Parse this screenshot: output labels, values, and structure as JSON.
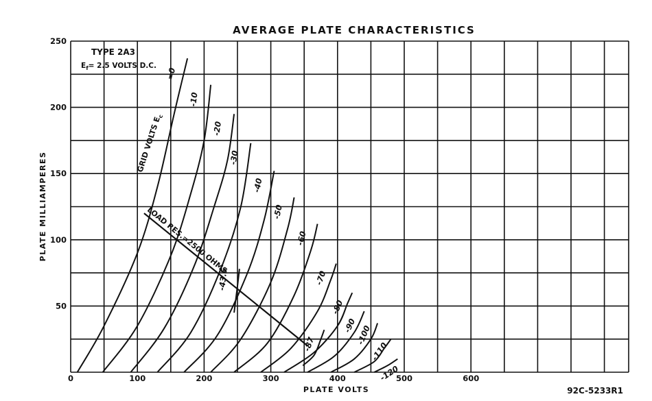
{
  "chart_data": {
    "type": "line",
    "title": "AVERAGE PLATE CHARACTERISTICS",
    "xlabel": "PLATE VOLTS",
    "ylabel": "PLATE MILLIAMPERES",
    "xlim": [
      0,
      600
    ],
    "ylim": [
      0,
      250
    ],
    "x_ticks": [
      "0",
      "100",
      "200",
      "300",
      "400",
      "500",
      "600"
    ],
    "y_ticks": [
      "0",
      "50",
      "100",
      "150",
      "200",
      "250"
    ],
    "x_tick_values": [
      0,
      100,
      200,
      300,
      400,
      500,
      600
    ],
    "y_tick_values": [
      0,
      50,
      100,
      150,
      200,
      250
    ],
    "grid": true,
    "x_grid_step": 50,
    "y_grid_step": 25,
    "annotations": {
      "tube_type": "TYPE 2A3",
      "filament": "E",
      "filament_sub": "f",
      "filament_value": "= 2.5 VOLTS D.C.",
      "grid_volts": "GRID VOLTS E",
      "grid_volts_sub": "c",
      "figure_number": "92C-5233R1",
      "load_line_label": "LOAD RES.=2500 OHMS"
    },
    "series": [
      {
        "name": "=0",
        "values": [
          [
            10,
            0
          ],
          [
            50,
            35
          ],
          [
            100,
            90
          ],
          [
            130,
            140
          ],
          [
            155,
            195
          ],
          [
            175,
            237
          ]
        ]
      },
      {
        "name": "-10",
        "values": [
          [
            48,
            0
          ],
          [
            100,
            35
          ],
          [
            150,
            88
          ],
          [
            180,
            135
          ],
          [
            200,
            175
          ],
          [
            210,
            217
          ]
        ]
      },
      {
        "name": "-20",
        "values": [
          [
            90,
            0
          ],
          [
            140,
            33
          ],
          [
            185,
            80
          ],
          [
            215,
            125
          ],
          [
            235,
            160
          ],
          [
            245,
            195
          ]
        ]
      },
      {
        "name": "-30",
        "values": [
          [
            130,
            0
          ],
          [
            180,
            30
          ],
          [
            225,
            78
          ],
          [
            255,
            125
          ],
          [
            270,
            173
          ]
        ]
      },
      {
        "name": "-40",
        "values": [
          [
            170,
            0
          ],
          [
            220,
            28
          ],
          [
            265,
            75
          ],
          [
            290,
            115
          ],
          [
            305,
            152
          ]
        ]
      },
      {
        "name": "-50",
        "values": [
          [
            210,
            0
          ],
          [
            255,
            25
          ],
          [
            300,
            68
          ],
          [
            325,
            108
          ],
          [
            335,
            132
          ]
        ]
      },
      {
        "name": "-43.5",
        "values": [
          [
            245,
            45
          ],
          [
            250,
            65
          ],
          [
            253,
            78
          ]
        ]
      },
      {
        "name": "-60",
        "values": [
          [
            245,
            0
          ],
          [
            295,
            22
          ],
          [
            335,
            58
          ],
          [
            360,
            92
          ],
          [
            370,
            112
          ]
        ]
      },
      {
        "name": "-70",
        "values": [
          [
            285,
            0
          ],
          [
            330,
            18
          ],
          [
            370,
            46
          ],
          [
            390,
            70
          ],
          [
            398,
            82
          ]
        ]
      },
      {
        "name": "-80",
        "values": [
          [
            320,
            0
          ],
          [
            365,
            15
          ],
          [
            400,
            35
          ],
          [
            415,
            52
          ],
          [
            422,
            60
          ]
        ]
      },
      {
        "name": "-87",
        "values": [
          [
            348,
            5
          ],
          [
            365,
            13
          ],
          [
            375,
            25
          ],
          [
            380,
            32
          ]
        ]
      },
      {
        "name": "-90",
        "values": [
          [
            355,
            0
          ],
          [
            395,
            12
          ],
          [
            425,
            30
          ],
          [
            440,
            46
          ]
        ]
      },
      {
        "name": "-100",
        "values": [
          [
            390,
            0
          ],
          [
            425,
            10
          ],
          [
            450,
            25
          ],
          [
            460,
            37
          ]
        ]
      },
      {
        "name": "-110",
        "values": [
          [
            425,
            0
          ],
          [
            455,
            8
          ],
          [
            470,
            18
          ],
          [
            480,
            25
          ]
        ]
      },
      {
        "name": "-120",
        "values": [
          [
            455,
            0
          ],
          [
            475,
            5
          ],
          [
            490,
            10
          ]
        ]
      }
    ],
    "load_line": [
      [
        110,
        120
      ],
      [
        355,
        20
      ]
    ]
  }
}
